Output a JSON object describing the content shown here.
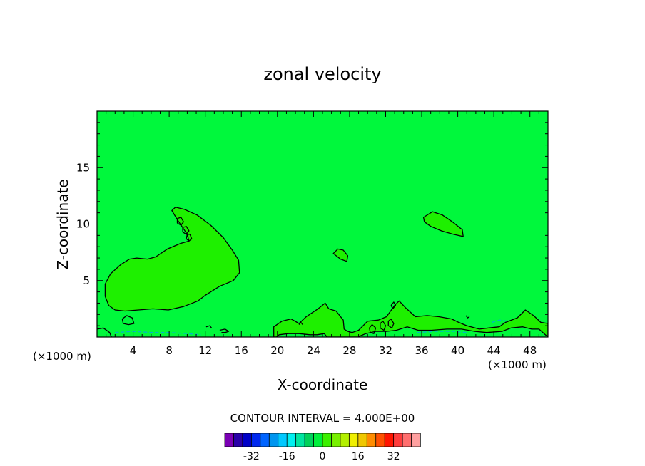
{
  "chart_data": {
    "type": "contour",
    "title": "zonal velocity",
    "xlabel": "X-coordinate",
    "ylabel": "Z-coordinate",
    "x_unit": "(×1000 m)",
    "y_unit": "(×1000 m)",
    "xlim": [
      0,
      50
    ],
    "ylim": [
      0,
      20
    ],
    "x_ticks": [
      4,
      8,
      12,
      16,
      20,
      24,
      28,
      32,
      36,
      40,
      44,
      48
    ],
    "y_ticks": [
      5,
      10,
      15
    ],
    "contour_interval_label": "CONTOUR INTERVAL = 4.000E+00",
    "background_value": 0,
    "background_color": "#00f83c",
    "contour_line_color": "#000000",
    "regions": [
      {
        "name": "positive-lobe-west",
        "fill": "#1ef000",
        "points": [
          [
            0.9,
            4.7
          ],
          [
            1.5,
            5.6
          ],
          [
            2.6,
            6.4
          ],
          [
            3.6,
            6.9
          ],
          [
            4.4,
            7.0
          ],
          [
            5.6,
            6.9
          ],
          [
            6.5,
            7.1
          ],
          [
            7.8,
            7.8
          ],
          [
            9.3,
            8.3
          ],
          [
            10.2,
            8.5
          ],
          [
            10.0,
            9.1
          ],
          [
            8.9,
            10.4
          ],
          [
            8.3,
            11.2
          ],
          [
            8.7,
            11.5
          ],
          [
            9.7,
            11.3
          ],
          [
            11.1,
            10.8
          ],
          [
            12.6,
            9.9
          ],
          [
            14.0,
            8.8
          ],
          [
            15.0,
            7.7
          ],
          [
            15.7,
            6.8
          ],
          [
            15.8,
            5.7
          ],
          [
            15.1,
            5.0
          ],
          [
            13.6,
            4.5
          ],
          [
            12.0,
            3.7
          ],
          [
            11.2,
            3.2
          ],
          [
            9.6,
            2.7
          ],
          [
            7.9,
            2.4
          ],
          [
            6.2,
            2.5
          ],
          [
            4.6,
            2.4
          ],
          [
            3.1,
            2.3
          ],
          [
            2.0,
            2.4
          ],
          [
            1.3,
            2.8
          ],
          [
            0.9,
            3.6
          ]
        ]
      },
      {
        "name": "positive-blob-x26",
        "fill": "#1ef000",
        "points": [
          [
            26.2,
            7.4
          ],
          [
            26.7,
            7.8
          ],
          [
            27.3,
            7.7
          ],
          [
            27.8,
            7.2
          ],
          [
            27.7,
            6.7
          ],
          [
            27.0,
            6.9
          ]
        ]
      },
      {
        "name": "positive-blob-x38",
        "fill": "#1ef000",
        "points": [
          [
            36.2,
            10.6
          ],
          [
            37.2,
            11.1
          ],
          [
            38.3,
            10.8
          ],
          [
            39.4,
            10.2
          ],
          [
            40.5,
            9.5
          ],
          [
            40.6,
            8.9
          ],
          [
            39.5,
            9.1
          ],
          [
            38.2,
            9.4
          ],
          [
            37.0,
            9.8
          ],
          [
            36.3,
            10.2
          ]
        ]
      },
      {
        "name": "positive-band-surface",
        "fill": "#1ef000",
        "points": [
          [
            19.6,
            0
          ],
          [
            19.6,
            0.9
          ],
          [
            20.5,
            1.4
          ],
          [
            21.5,
            1.6
          ],
          [
            22.4,
            1.2
          ],
          [
            23.2,
            1.8
          ],
          [
            24.5,
            2.5
          ],
          [
            25.3,
            3.0
          ],
          [
            25.7,
            2.5
          ],
          [
            26.5,
            2.3
          ],
          [
            27.3,
            1.5
          ],
          [
            27.4,
            0.7
          ],
          [
            27.8,
            0.5
          ],
          [
            28.3,
            0.4
          ],
          [
            29.0,
            0.6
          ],
          [
            30.0,
            1.4
          ],
          [
            31.2,
            1.5
          ],
          [
            32.1,
            1.8
          ],
          [
            33.0,
            2.8
          ],
          [
            33.5,
            3.2
          ],
          [
            34.2,
            2.6
          ],
          [
            35.3,
            1.8
          ],
          [
            36.6,
            1.9
          ],
          [
            37.9,
            1.8
          ],
          [
            39.3,
            1.6
          ],
          [
            40.1,
            1.3
          ],
          [
            41.0,
            1.0
          ],
          [
            42.4,
            0.7
          ],
          [
            43.4,
            0.8
          ],
          [
            44.6,
            0.9
          ],
          [
            45.3,
            1.3
          ],
          [
            46.6,
            1.7
          ],
          [
            47.5,
            2.4
          ],
          [
            48.4,
            1.9
          ],
          [
            49.2,
            1.3
          ],
          [
            50.0,
            1.2
          ],
          [
            50.0,
            0
          ],
          [
            49.0,
            0.7
          ],
          [
            48.2,
            0.7
          ],
          [
            47.2,
            0.9
          ],
          [
            45.9,
            0.8
          ],
          [
            44.9,
            0.5
          ],
          [
            43.2,
            0.4
          ],
          [
            41.9,
            0.5
          ],
          [
            40.4,
            0.7
          ],
          [
            38.8,
            0.7
          ],
          [
            37.1,
            0.6
          ],
          [
            35.6,
            0.6
          ],
          [
            34.4,
            0.9
          ],
          [
            33.2,
            0.6
          ],
          [
            32.1,
            0.5
          ],
          [
            30.9,
            0.5
          ],
          [
            29.8,
            0.3
          ],
          [
            29.2,
            0.1
          ],
          [
            29.0,
            0
          ],
          [
            25.5,
            0
          ],
          [
            25.2,
            0.3
          ],
          [
            24.4,
            0.2
          ],
          [
            23.6,
            0.2
          ],
          [
            22.4,
            0.3
          ],
          [
            21.2,
            0.3
          ],
          [
            20.2,
            0.2
          ],
          [
            19.9,
            0
          ]
        ]
      }
    ],
    "contour_lines": [
      {
        "name": "ring-a",
        "style": "solid",
        "points": [
          [
            8.9,
            10.5
          ],
          [
            9.3,
            10.6
          ],
          [
            9.6,
            10.2
          ],
          [
            9.3,
            9.9
          ],
          [
            8.9,
            10.1
          ],
          [
            8.9,
            10.5
          ]
        ]
      },
      {
        "name": "ring-b",
        "style": "solid",
        "points": [
          [
            9.5,
            9.7
          ],
          [
            9.9,
            9.8
          ],
          [
            10.2,
            9.4
          ],
          [
            9.9,
            9.1
          ],
          [
            9.5,
            9.3
          ],
          [
            9.5,
            9.7
          ]
        ]
      },
      {
        "name": "ring-c",
        "style": "solid",
        "points": [
          [
            10.0,
            9.1
          ],
          [
            10.3,
            9.1
          ],
          [
            10.5,
            8.7
          ],
          [
            10.2,
            8.5
          ],
          [
            9.9,
            8.7
          ],
          [
            10.0,
            9.1
          ]
        ]
      },
      {
        "name": "small-ring-west",
        "style": "solid",
        "points": [
          [
            2.8,
            1.6
          ],
          [
            3.3,
            1.9
          ],
          [
            3.9,
            1.7
          ],
          [
            4.1,
            1.2
          ],
          [
            3.5,
            1.1
          ],
          [
            2.9,
            1.2
          ],
          [
            2.8,
            1.6
          ]
        ]
      },
      {
        "name": "ring-x30",
        "style": "solid",
        "points": [
          [
            30.2,
            0.8
          ],
          [
            30.5,
            1.1
          ],
          [
            30.9,
            0.8
          ],
          [
            30.7,
            0.3
          ],
          [
            30.3,
            0.4
          ],
          [
            30.2,
            0.8
          ]
        ]
      },
      {
        "name": "ring-x31",
        "style": "solid",
        "points": [
          [
            31.4,
            1.2
          ],
          [
            31.7,
            1.4
          ],
          [
            32.0,
            1.0
          ],
          [
            31.8,
            0.6
          ],
          [
            31.4,
            0.8
          ],
          [
            31.4,
            1.2
          ]
        ]
      },
      {
        "name": "ring-x32",
        "style": "solid",
        "points": [
          [
            32.3,
            1.4
          ],
          [
            32.6,
            1.6
          ],
          [
            32.9,
            1.2
          ],
          [
            32.7,
            0.8
          ],
          [
            32.3,
            1.0
          ],
          [
            32.3,
            1.4
          ]
        ]
      },
      {
        "name": "ring-x32b",
        "style": "solid",
        "points": [
          [
            32.6,
            2.8
          ],
          [
            32.9,
            3.1
          ],
          [
            33.1,
            2.8
          ],
          [
            32.8,
            2.5
          ],
          [
            32.6,
            2.8
          ]
        ]
      },
      {
        "name": "edge-west",
        "style": "solid",
        "points": [
          [
            0,
            0.7
          ],
          [
            0.7,
            0.8
          ],
          [
            1.4,
            0.4
          ],
          [
            1.6,
            0
          ]
        ]
      },
      {
        "name": "dash-west",
        "style": "dashed",
        "points": [
          [
            2.0,
            0.4
          ],
          [
            4.0,
            0.5
          ],
          [
            6.0,
            0.4
          ],
          [
            8.0,
            0.4
          ],
          [
            10.0,
            0.3
          ],
          [
            11.5,
            0.2
          ]
        ]
      },
      {
        "name": "dash-east",
        "style": "dashed",
        "points": [
          [
            43.8,
            1.3
          ],
          [
            44.6,
            1.5
          ],
          [
            45.4,
            1.4
          ]
        ]
      },
      {
        "name": "dash-east-low",
        "style": "dashed",
        "points": [
          [
            35.5,
            0.4
          ],
          [
            37.5,
            0.5
          ],
          [
            39.5,
            0.5
          ],
          [
            41.0,
            0.4
          ]
        ]
      },
      {
        "name": "frag-12",
        "style": "solid",
        "points": [
          [
            12.1,
            0.9
          ],
          [
            12.5,
            1.0
          ],
          [
            12.7,
            0.8
          ]
        ]
      },
      {
        "name": "frag-14",
        "style": "solid",
        "points": [
          [
            13.6,
            0.6
          ],
          [
            14.2,
            0.7
          ],
          [
            14.6,
            0.5
          ],
          [
            14.2,
            0.4
          ],
          [
            13.8,
            0.4
          ]
        ]
      },
      {
        "name": "frag-23",
        "style": "solid",
        "points": [
          [
            22.4,
            1.1
          ],
          [
            22.6,
            1.3
          ],
          [
            22.8,
            1.1
          ]
        ]
      },
      {
        "name": "frag-41",
        "style": "solid",
        "points": [
          [
            40.9,
            1.9
          ],
          [
            41.1,
            1.7
          ],
          [
            41.3,
            1.8
          ]
        ]
      }
    ],
    "colorbar": {
      "colors": [
        "#7a00b4",
        "#2a00a8",
        "#0000c8",
        "#0028f0",
        "#0064ff",
        "#0096f0",
        "#00c8ff",
        "#00f0f0",
        "#00e6a0",
        "#00d25a",
        "#00f03c",
        "#3cf000",
        "#78f000",
        "#b4f000",
        "#f0f000",
        "#f0c800",
        "#ff8c00",
        "#ff5000",
        "#ff1400",
        "#ff3c3c",
        "#ff6e6e",
        "#ffa0a0"
      ],
      "tick_labels": [
        "-32",
        "-16",
        "0",
        "16",
        "32"
      ],
      "tick_values": [
        -32,
        -16,
        0,
        16,
        32
      ],
      "min": -44,
      "max": 44
    }
  }
}
